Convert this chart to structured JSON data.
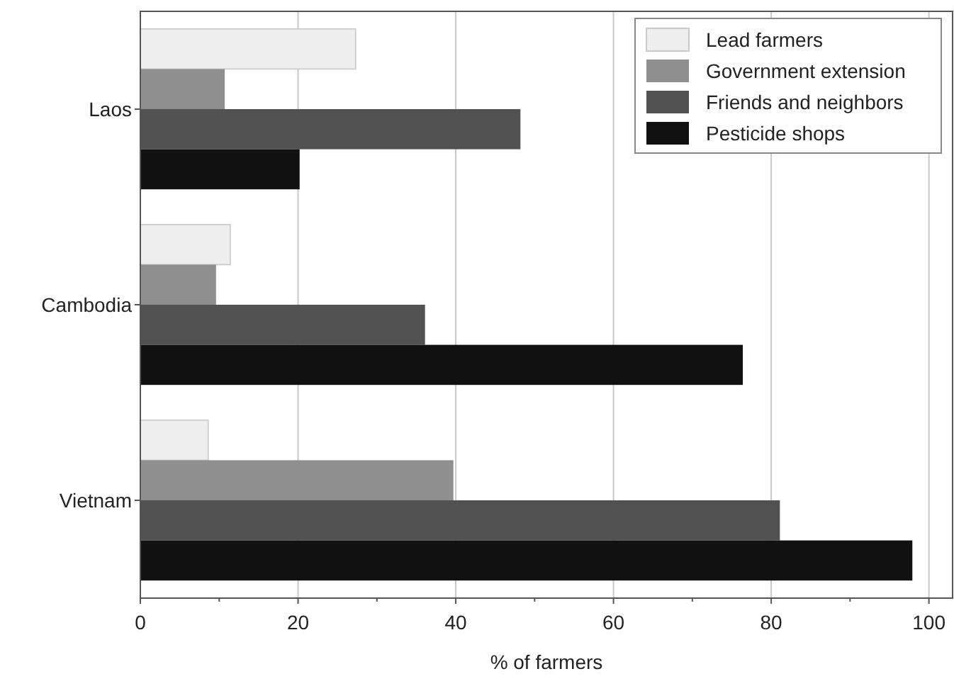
{
  "chart_data": {
    "type": "bar",
    "orientation": "horizontal",
    "xlabel": "% of farmers",
    "categories": [
      "Laos",
      "Cambodia",
      "Vietnam"
    ],
    "series": [
      {
        "name": "Lead farmers",
        "color": "#eeeeee",
        "values": [
          27.3,
          11.4,
          8.6
        ]
      },
      {
        "name": "Government extension",
        "color": "#8f8f8f",
        "values": [
          10.7,
          9.6,
          39.7
        ]
      },
      {
        "name": "Friends and neighbors",
        "color": "#515151",
        "values": [
          48.2,
          36.1,
          81.1
        ]
      },
      {
        "name": "Pesticide shops",
        "color": "#111111",
        "values": [
          20.2,
          76.4,
          97.9
        ]
      }
    ],
    "xlim": [
      0,
      103
    ],
    "xticks": [
      0,
      {
        "value": 10,
        "label": null
      },
      20,
      {
        "value": 30,
        "label": null
      },
      40,
      {
        "value": 50,
        "label": null
      },
      60,
      {
        "value": 70,
        "label": null
      },
      80,
      {
        "value": 90,
        "label": null
      },
      100
    ],
    "grid": "x",
    "legend": "top right"
  }
}
